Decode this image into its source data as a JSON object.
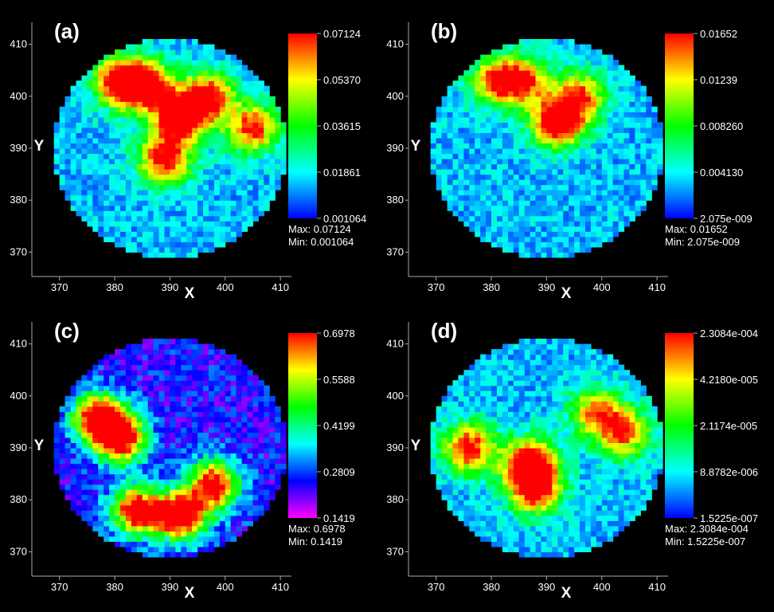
{
  "chart_data": [
    {
      "type": "heatmap",
      "panel_label": "(a)",
      "xlabel": "X",
      "ylabel": "Y",
      "xlim": [
        365,
        412
      ],
      "ylim": [
        365,
        413
      ],
      "x_ticks": [
        "370",
        "380",
        "390",
        "400",
        "410"
      ],
      "y_ticks": [
        "370",
        "380",
        "390",
        "400",
        "410"
      ],
      "colorbar_ticks": [
        "0.07124",
        "0.05370",
        "0.03615",
        "0.01861",
        "0.001064"
      ],
      "max_label": "Max:  0.07124",
      "min_label": "Min:  0.001064",
      "domain": {
        "shape": "circle",
        "center": [
          390,
          390
        ],
        "radius": 21
      },
      "colormap": [
        "#0000ff",
        "#00ffff",
        "#00ff00",
        "#ffff00",
        "#ff0000"
      ],
      "hotspots": [
        {
          "x": 381,
          "y": 403,
          "value": 0.068
        },
        {
          "x": 386,
          "y": 402,
          "value": 0.064
        },
        {
          "x": 392,
          "y": 396,
          "value": 0.07
        },
        {
          "x": 389,
          "y": 388,
          "value": 0.062
        },
        {
          "x": 397,
          "y": 400,
          "value": 0.06
        },
        {
          "x": 405,
          "y": 394,
          "value": 0.056
        }
      ]
    },
    {
      "type": "heatmap",
      "panel_label": "(b)",
      "xlabel": "X",
      "ylabel": "Y",
      "xlim": [
        365,
        412
      ],
      "ylim": [
        365,
        413
      ],
      "x_ticks": [
        "370",
        "380",
        "390",
        "400",
        "410"
      ],
      "y_ticks": [
        "370",
        "380",
        "390",
        "400",
        "410"
      ],
      "colorbar_ticks": [
        "0.01652",
        "0.01239",
        "0.008260",
        "0.004130",
        "2.075e-009"
      ],
      "max_label": "Max:  0.01652",
      "min_label": "Min:  2.075e-009",
      "domain": {
        "shape": "circle",
        "center": [
          390,
          390
        ],
        "radius": 21
      },
      "colormap": [
        "#0000ff",
        "#00ffff",
        "#00ff00",
        "#ffff00",
        "#ff0000"
      ],
      "hotspots": [
        {
          "x": 381,
          "y": 403,
          "value": 0.012
        },
        {
          "x": 386,
          "y": 403,
          "value": 0.011
        },
        {
          "x": 392,
          "y": 395,
          "value": 0.0165
        },
        {
          "x": 396,
          "y": 400,
          "value": 0.012
        }
      ]
    },
    {
      "type": "heatmap",
      "panel_label": "(c)",
      "xlabel": "X",
      "ylabel": "Y",
      "xlim": [
        365,
        412
      ],
      "ylim": [
        365,
        413
      ],
      "x_ticks": [
        "370",
        "380",
        "390",
        "400",
        "410"
      ],
      "y_ticks": [
        "370",
        "380",
        "390",
        "400",
        "410"
      ],
      "colorbar_ticks": [
        "0.6978",
        "0.5588",
        "0.4199",
        "0.2809",
        "0.1419"
      ],
      "max_label": "Max:  0.6978",
      "min_label": "Min:  0.1419",
      "domain": {
        "shape": "circle",
        "center": [
          390,
          390
        ],
        "radius": 21
      },
      "colormap": [
        "#ff00ff",
        "#0000ff",
        "#00ffff",
        "#00ff00",
        "#ffff00",
        "#ff0000"
      ],
      "hotspots": [
        {
          "x": 377,
          "y": 396,
          "value": 0.62
        },
        {
          "x": 381,
          "y": 392,
          "value": 0.66
        },
        {
          "x": 384,
          "y": 378,
          "value": 0.63
        },
        {
          "x": 392,
          "y": 377,
          "value": 0.68
        },
        {
          "x": 398,
          "y": 383,
          "value": 0.6
        }
      ]
    },
    {
      "type": "heatmap",
      "panel_label": "(d)",
      "xlabel": "X",
      "ylabel": "Y",
      "xlim": [
        365,
        412
      ],
      "ylim": [
        365,
        413
      ],
      "x_ticks": [
        "370",
        "380",
        "390",
        "400",
        "410"
      ],
      "y_ticks": [
        "370",
        "380",
        "390",
        "400",
        "410"
      ],
      "colorbar_ticks": [
        "2.3084e-004",
        "4.2180e-005",
        "2.1174e-005",
        "8.8782e-006",
        "1.5225e-007"
      ],
      "max_label": "Max:  2.3084e-004",
      "min_label": "Min:  1.5225e-007",
      "domain": {
        "shape": "circle",
        "center": [
          390,
          390
        ],
        "radius": 21
      },
      "colormap": [
        "#0000ff",
        "#00ffff",
        "#00ff00",
        "#ffff00",
        "#ff0000"
      ],
      "hotspots": [
        {
          "x": 376,
          "y": 390,
          "value": 0.0002
        },
        {
          "x": 387,
          "y": 387,
          "value": 0.00023
        },
        {
          "x": 388,
          "y": 382,
          "value": 0.00019
        },
        {
          "x": 399,
          "y": 397,
          "value": 0.00015
        },
        {
          "x": 404,
          "y": 393,
          "value": 0.00017
        }
      ]
    }
  ]
}
